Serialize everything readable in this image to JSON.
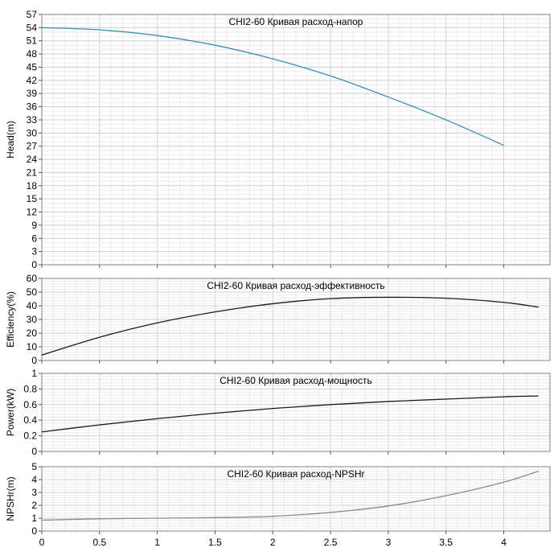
{
  "chart_data": [
    {
      "type": "line",
      "title": "CHI2-60 Кривая расход-напор",
      "ylabel": "Head(m)",
      "xlabel": "",
      "xlim": [
        0,
        4.4
      ],
      "ylim": [
        0,
        57
      ],
      "yticks": [
        "0",
        "3",
        "6",
        "9",
        "12",
        "15",
        "18",
        "21",
        "24",
        "27",
        "30",
        "33",
        "36",
        "39",
        "42",
        "45",
        "48",
        "51",
        "54",
        "57"
      ],
      "grid": true,
      "color": "#3a8fb7",
      "series": [
        {
          "x": [
            0,
            0.5,
            1,
            1.5,
            2,
            2.5,
            3,
            3.5,
            4
          ],
          "y": [
            54.0,
            53.5,
            52.2,
            50.0,
            46.9,
            43.0,
            38.2,
            33.0,
            27.2
          ]
        }
      ]
    },
    {
      "type": "line",
      "title": "CHI2-60 Кривая расход-эффективность",
      "ylabel": "Efficiency(%)",
      "xlabel": "",
      "xlim": [
        0,
        4.4
      ],
      "ylim": [
        0,
        60
      ],
      "yticks": [
        "0",
        "10",
        "20",
        "30",
        "40",
        "50",
        "60"
      ],
      "grid": true,
      "color": "#1a1a1a",
      "series": [
        {
          "x": [
            0,
            0.5,
            1,
            1.5,
            2,
            2.5,
            3,
            3.5,
            4,
            4.3
          ],
          "y": [
            4,
            17,
            27.5,
            35.5,
            41.5,
            45.2,
            46.2,
            45.5,
            42.5,
            39
          ]
        }
      ]
    },
    {
      "type": "line",
      "title": "CHI2-60 Кривая расход-мощность",
      "ylabel": "Power(kW)",
      "xlabel": "",
      "xlim": [
        0,
        4.4
      ],
      "ylim": [
        0,
        1
      ],
      "yticks": [
        "0",
        "0.2",
        "0.4",
        "0.6",
        "0.8",
        "1"
      ],
      "grid": true,
      "color": "#1a1a1a",
      "series": [
        {
          "x": [
            0,
            0.5,
            1,
            1.5,
            2,
            2.5,
            3,
            3.5,
            4,
            4.3
          ],
          "y": [
            0.25,
            0.34,
            0.42,
            0.49,
            0.55,
            0.6,
            0.64,
            0.67,
            0.7,
            0.71
          ]
        }
      ]
    },
    {
      "type": "line",
      "title": "CHI2-60 Кривая расход-NPSHr",
      "ylabel": "NPSHr(m)",
      "xlabel": "",
      "xlim": [
        0,
        4.4
      ],
      "ylim": [
        0,
        5
      ],
      "yticks": [
        "0",
        "1",
        "2",
        "3",
        "4",
        "5"
      ],
      "xticks": [
        "0",
        "0.5",
        "1",
        "1.5",
        "2",
        "2.5",
        "3",
        "3.5",
        "4"
      ],
      "grid": true,
      "color": "#8a8a8a",
      "series": [
        {
          "x": [
            0,
            0.5,
            1,
            1.5,
            2,
            2.5,
            3,
            3.5,
            4,
            4.3
          ],
          "y": [
            0.85,
            0.95,
            1.0,
            1.05,
            1.15,
            1.45,
            1.95,
            2.75,
            3.8,
            4.65
          ]
        }
      ]
    }
  ]
}
